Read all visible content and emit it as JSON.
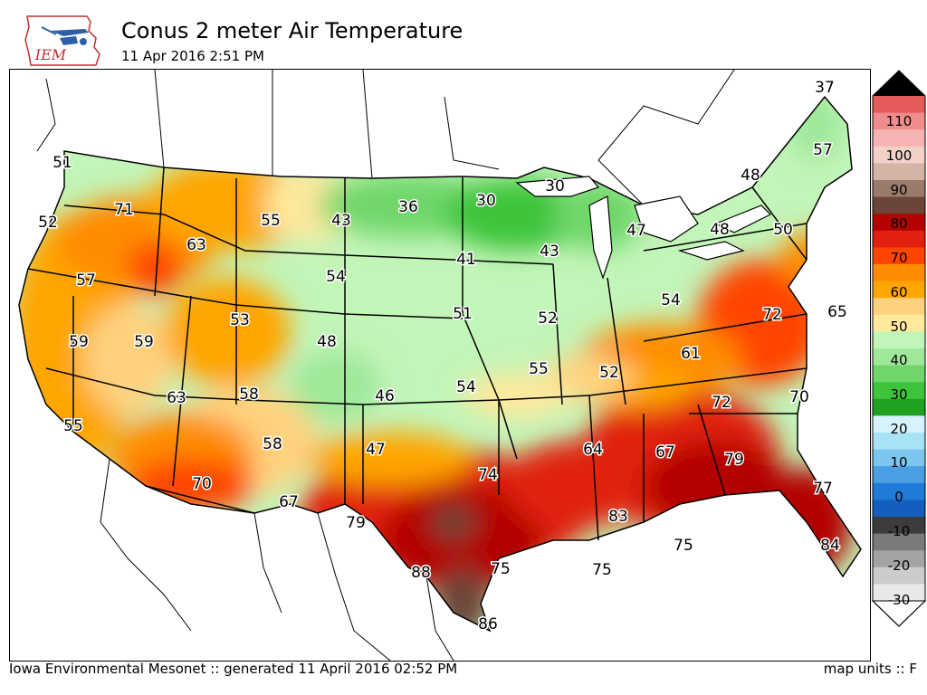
{
  "header": {
    "logo_text": "IEM",
    "title": "Conus 2 meter Air Temperature",
    "subtitle": "11 Apr 2016 2:51 PM"
  },
  "footer": {
    "left": "Iowa Environmental Mesonet :: generated 11 April 2016 02:52 PM",
    "right": "map units :: F"
  },
  "colorbar": {
    "ticks": [
      "110",
      "100",
      "90",
      "80",
      "70",
      "60",
      "50",
      "40",
      "30",
      "20",
      "10",
      "0",
      "-10",
      "-20",
      "-30"
    ],
    "colors": [
      "#000000",
      "#e65a5a",
      "#f08c8c",
      "#f7b3b3",
      "#f2d2c8",
      "#d3b5a6",
      "#9a7a6b",
      "#6b4537",
      "#b30000",
      "#e02010",
      "#ff4500",
      "#ff8c00",
      "#ffa500",
      "#ffd27f",
      "#ffe99c",
      "#c2f5b8",
      "#9fe89a",
      "#6fd76a",
      "#3ec43b",
      "#1fa21f",
      "#d6f3fb",
      "#a8e2f5",
      "#7ac6ee",
      "#4a9fe3",
      "#1f7ad8",
      "#145ec0",
      "#3c3c3c",
      "#7a7a7a",
      "#a3a3a3",
      "#cccccc",
      "#e8e8e8",
      "#ffffff"
    ]
  },
  "map_labels": [
    {
      "v": "51"
    },
    {
      "v": "52"
    },
    {
      "v": "71"
    },
    {
      "v": "63"
    },
    {
      "v": "55"
    },
    {
      "v": "43"
    },
    {
      "v": "36"
    },
    {
      "v": "30"
    },
    {
      "v": "30"
    },
    {
      "v": "37"
    },
    {
      "v": "57"
    },
    {
      "v": "48"
    },
    {
      "v": "47"
    },
    {
      "v": "43"
    },
    {
      "v": "41"
    },
    {
      "v": "54"
    },
    {
      "v": "57"
    },
    {
      "v": "48"
    },
    {
      "v": "50"
    },
    {
      "v": "53"
    },
    {
      "v": "51"
    },
    {
      "v": "52"
    },
    {
      "v": "54"
    },
    {
      "v": "65"
    },
    {
      "v": "72"
    },
    {
      "v": "59"
    },
    {
      "v": "59"
    },
    {
      "v": "48"
    },
    {
      "v": "61"
    },
    {
      "v": "63"
    },
    {
      "v": "58"
    },
    {
      "v": "46"
    },
    {
      "v": "54"
    },
    {
      "v": "55"
    },
    {
      "v": "52"
    },
    {
      "v": "72"
    },
    {
      "v": "70"
    },
    {
      "v": "55"
    },
    {
      "v": "58"
    },
    {
      "v": "47"
    },
    {
      "v": "64"
    },
    {
      "v": "67"
    },
    {
      "v": "79"
    },
    {
      "v": "74"
    },
    {
      "v": "70"
    },
    {
      "v": "67"
    },
    {
      "v": "79"
    },
    {
      "v": "83"
    },
    {
      "v": "77"
    },
    {
      "v": "75"
    },
    {
      "v": "75"
    },
    {
      "v": "88"
    },
    {
      "v": "75"
    },
    {
      "v": "84"
    },
    {
      "v": "86"
    }
  ]
}
